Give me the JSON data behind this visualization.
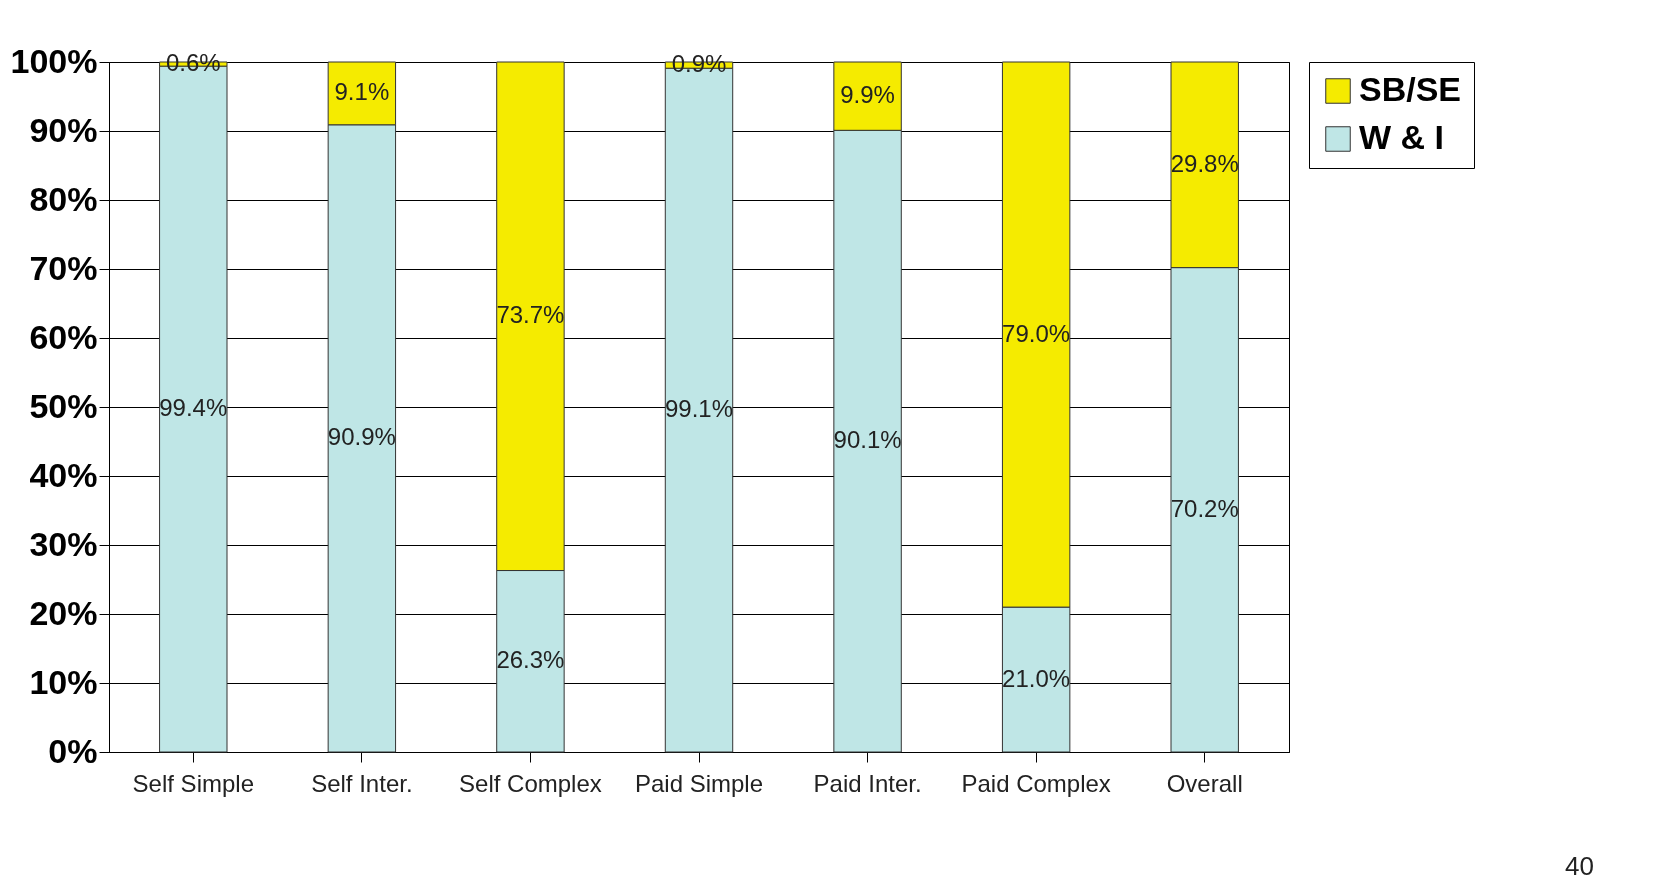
{
  "chart_data": {
    "type": "bar",
    "stacked": true,
    "categories": [
      "Self Simple",
      "Self Inter.",
      "Self Complex",
      "Paid Simple",
      "Paid Inter.",
      "Paid Complex",
      "Overall"
    ],
    "series": [
      {
        "name": "W & I",
        "color": "#bfe6e6",
        "values": [
          99.4,
          90.9,
          26.3,
          99.1,
          90.1,
          21.0,
          70.2
        ],
        "value_labels": [
          "99.4%",
          "90.9%",
          "26.3%",
          "99.1%",
          "90.1%",
          "21.0%",
          "70.2%"
        ]
      },
      {
        "name": "SB/SE",
        "color": "#f5eb00",
        "values": [
          0.6,
          9.1,
          73.7,
          0.9,
          9.9,
          79.0,
          29.8
        ],
        "value_labels": [
          "0.6%",
          "9.1%",
          "73.7%",
          "0.9%",
          "9.9%",
          "79.0%",
          "29.8%"
        ]
      }
    ],
    "ylim": [
      0,
      100
    ],
    "yticks": [
      {
        "value": 0,
        "label": "0%"
      },
      {
        "value": 10,
        "label": "10%"
      },
      {
        "value": 20,
        "label": "20%"
      },
      {
        "value": 30,
        "label": "30%"
      },
      {
        "value": 40,
        "label": "40%"
      },
      {
        "value": 50,
        "label": "50%"
      },
      {
        "value": 60,
        "label": "60%"
      },
      {
        "value": 70,
        "label": "70%"
      },
      {
        "value": 80,
        "label": "80%"
      },
      {
        "value": 90,
        "label": "90%"
      },
      {
        "value": 100,
        "label": "100%"
      }
    ],
    "grid": "y",
    "legend": "right",
    "annotations": [
      "40"
    ]
  }
}
